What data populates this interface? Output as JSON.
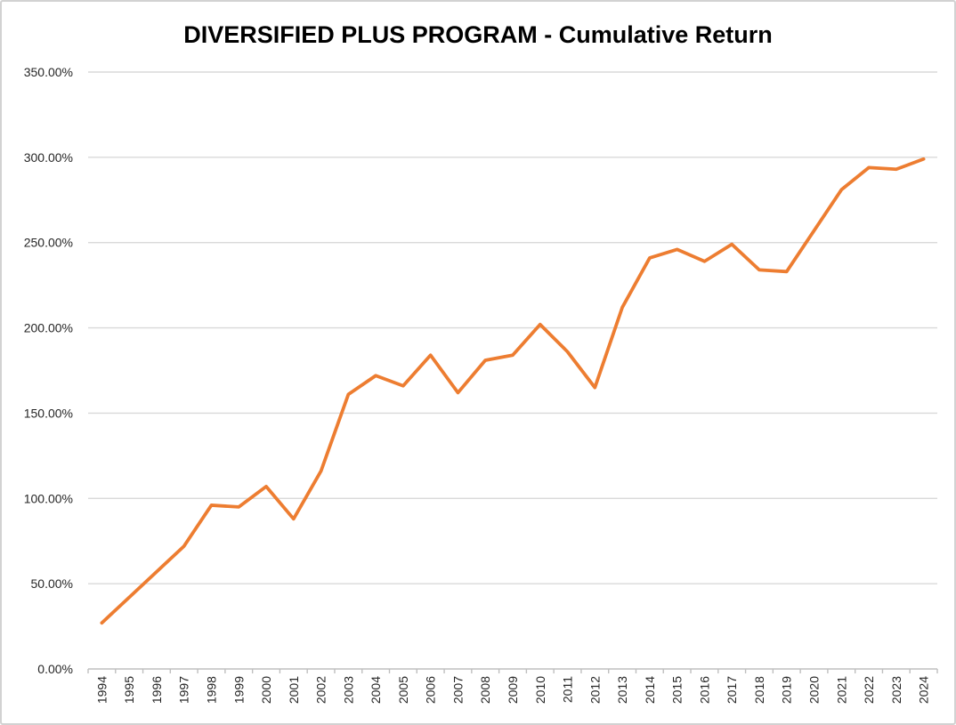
{
  "chart_data": {
    "type": "line",
    "title": "DIVERSIFIED PLUS PROGRAM - Cumulative Return",
    "x_categories": [
      "1994",
      "1995",
      "1996",
      "1997",
      "1998",
      "1999",
      "2000",
      "2001",
      "2002",
      "2003",
      "2004",
      "2005",
      "2006",
      "2007",
      "2008",
      "2009",
      "2010",
      "2011",
      "2012",
      "2013",
      "2014",
      "2015",
      "2016",
      "2017",
      "2018",
      "2019",
      "2020",
      "2021",
      "2022",
      "2023",
      "2024"
    ],
    "series": [
      {
        "name": "Cumulative Return",
        "color": "#ED7D31",
        "values_percent": [
          27,
          42,
          57,
          72,
          96,
          95,
          107,
          88,
          116,
          161,
          172,
          166,
          184,
          162,
          181,
          184,
          202,
          186,
          165,
          212,
          241,
          246,
          239,
          249,
          234,
          233,
          257,
          281,
          294,
          293,
          299
        ]
      }
    ],
    "ylim_percent": [
      0,
      350
    ],
    "ytick_step_percent": 50,
    "ytick_labels": [
      "0.00%",
      "50.00%",
      "100.00%",
      "150.00%",
      "200.00%",
      "250.00%",
      "300.00%",
      "350.00%"
    ],
    "xlabel": "",
    "ylabel": "",
    "grid": "horizontal",
    "legend": "none",
    "colors": {
      "line": "#ED7D31",
      "gridline": "#D9D9D9",
      "axis": "#BFBFBF",
      "tick_label": "#262626",
      "title": "#000000",
      "frame_border": "#D2D2D2",
      "background": "#FFFFFF"
    }
  }
}
